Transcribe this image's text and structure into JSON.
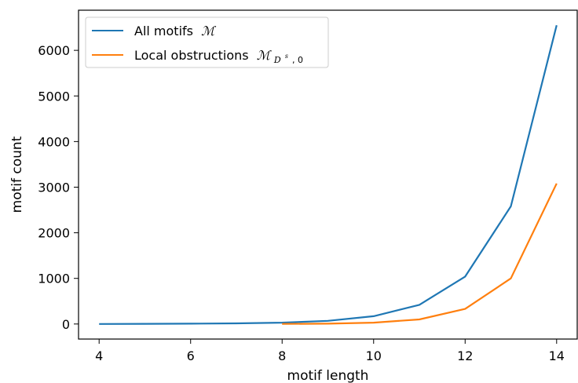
{
  "chart_data": {
    "type": "line",
    "xlabel": "motif length",
    "ylabel": "motif count",
    "xlim": [
      3.55,
      14.45
    ],
    "ylim": [
      -330,
      6880
    ],
    "xticks": [
      4,
      6,
      8,
      10,
      12,
      14
    ],
    "yticks": [
      0,
      1000,
      2000,
      3000,
      4000,
      5000,
      6000
    ],
    "grid": false,
    "legend_position": "top-left",
    "series": [
      {
        "name": "All motifs",
        "name_math": "ℳ",
        "color": "#1f77b4",
        "x": [
          4,
          5,
          6,
          7,
          8,
          9,
          10,
          11,
          12,
          13,
          14
        ],
        "y": [
          1,
          3,
          7,
          14,
          30,
          70,
          170,
          420,
          1040,
          2580,
          6550
        ]
      },
      {
        "name": "Local obstructions",
        "name_math": "ℳ",
        "name_math_sub": "D",
        "name_math_sup": "s",
        "name_math_sub_tail": ", 0",
        "color": "#ff7f0e",
        "x": [
          8,
          9,
          10,
          11,
          12,
          13,
          14
        ],
        "y": [
          2,
          8,
          30,
          100,
          330,
          1000,
          3080
        ]
      }
    ]
  }
}
